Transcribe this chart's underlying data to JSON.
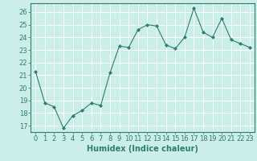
{
  "x": [
    0,
    1,
    2,
    3,
    4,
    5,
    6,
    7,
    8,
    9,
    10,
    11,
    12,
    13,
    14,
    15,
    16,
    17,
    18,
    19,
    20,
    21,
    22,
    23
  ],
  "y": [
    21.3,
    18.8,
    18.5,
    16.8,
    17.8,
    18.2,
    18.8,
    18.6,
    21.2,
    23.3,
    23.2,
    24.6,
    25.0,
    24.9,
    23.4,
    23.1,
    24.0,
    26.3,
    24.4,
    24.0,
    25.5,
    23.8,
    23.5,
    23.2
  ],
  "bg_color": "#cceee8",
  "line_color": "#2e7d6e",
  "marker": "D",
  "marker_size": 2.0,
  "xlabel": "Humidex (Indice chaleur)",
  "ylim": [
    16.5,
    26.7
  ],
  "yticks": [
    17,
    18,
    19,
    20,
    21,
    22,
    23,
    24,
    25,
    26
  ],
  "xticks": [
    0,
    1,
    2,
    3,
    4,
    5,
    6,
    7,
    8,
    9,
    10,
    11,
    12,
    13,
    14,
    15,
    16,
    17,
    18,
    19,
    20,
    21,
    22,
    23
  ],
  "grid_color": "#ffffff",
  "tick_color": "#2e7d6e",
  "label_color": "#2e7d6e",
  "spine_color": "#2e7d6e",
  "xlabel_fontsize": 7,
  "tick_fontsize": 6
}
